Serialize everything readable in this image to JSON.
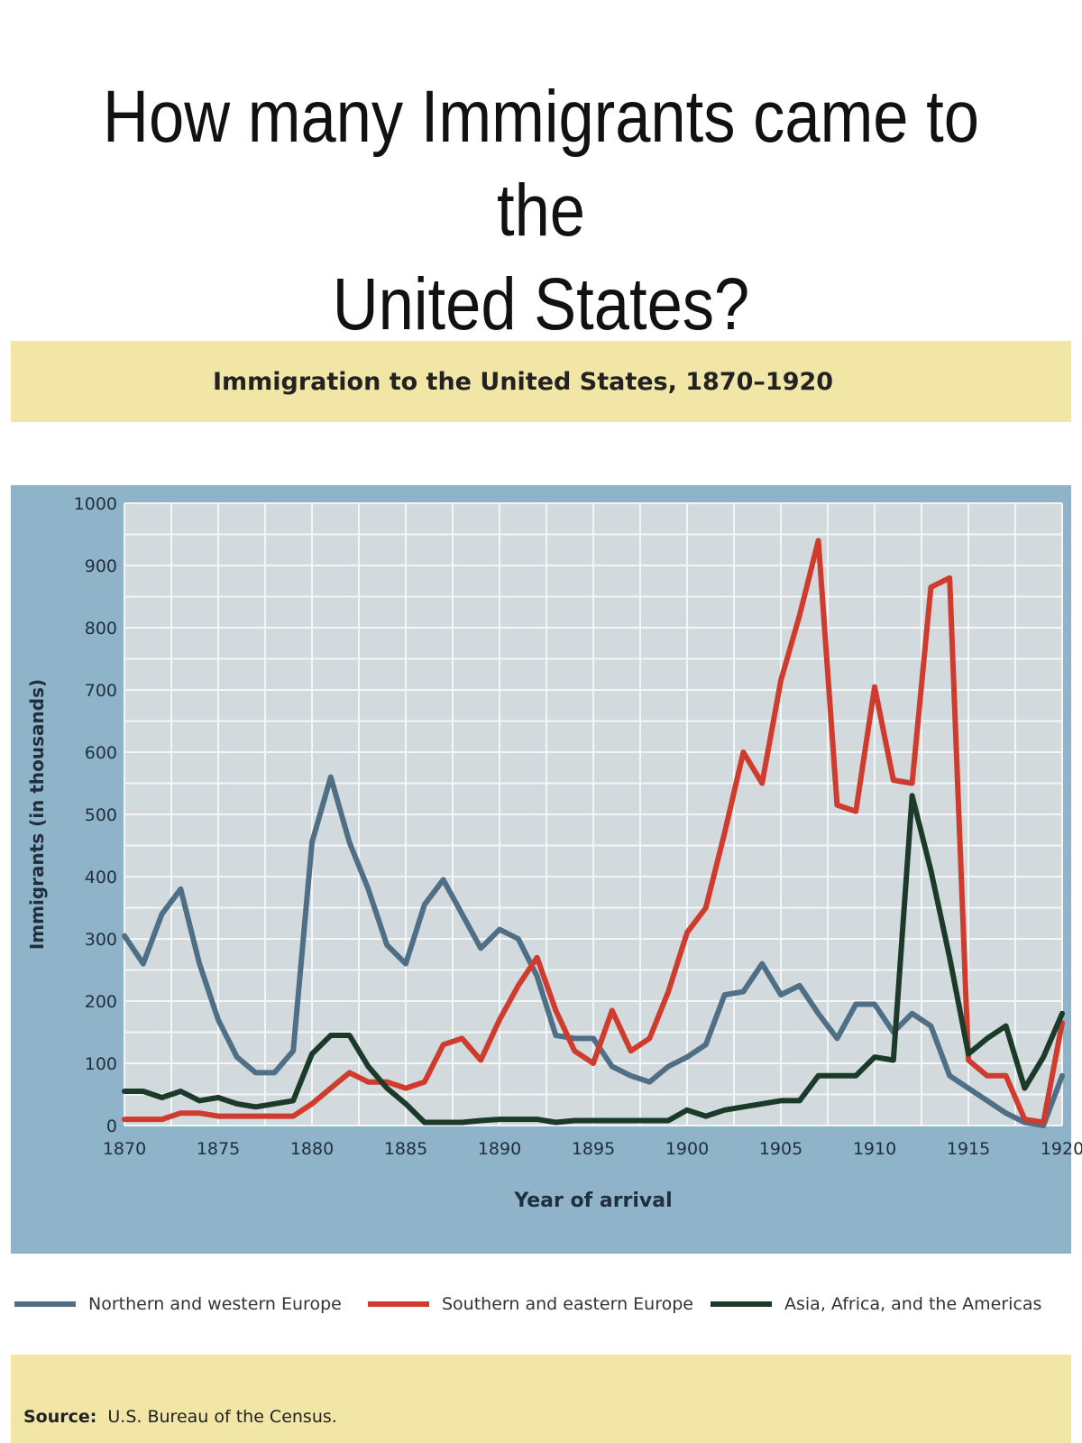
{
  "slide": {
    "title_line1": "How many Immigrants came to the",
    "title_line2": "United States?"
  },
  "colors": {
    "plot_background": "#d2dade",
    "frame": "#8fb3c9",
    "grid": "#f4f6f6",
    "band": "#f1e6a6"
  },
  "chart_data": {
    "type": "line",
    "title": "Immigration to the United States, 1870–1920",
    "xlabel": "Year of arrival",
    "ylabel": "Immigrants (in thousands)",
    "xlim": [
      1870,
      1920
    ],
    "ylim": [
      0,
      1000
    ],
    "x_ticks": [
      "1870",
      "1875",
      "1880",
      "1885",
      "1890",
      "1895",
      "1900",
      "1905",
      "1910",
      "1915",
      "1920"
    ],
    "y_ticks": [
      "0",
      "100",
      "200",
      "300",
      "400",
      "500",
      "600",
      "700",
      "800",
      "900",
      "1000"
    ],
    "grid": true,
    "legend_position": "bottom",
    "x": [
      1870,
      1871,
      1872,
      1873,
      1874,
      1875,
      1876,
      1877,
      1878,
      1879,
      1880,
      1881,
      1882,
      1883,
      1884,
      1885,
      1886,
      1887,
      1888,
      1889,
      1890,
      1891,
      1892,
      1893,
      1894,
      1895,
      1896,
      1897,
      1898,
      1899,
      1900,
      1901,
      1902,
      1903,
      1904,
      1905,
      1906,
      1907,
      1908,
      1909,
      1910,
      1911,
      1912,
      1913,
      1914,
      1915,
      1916,
      1917,
      1918,
      1919,
      1920
    ],
    "series": [
      {
        "name": "Northern and western Europe",
        "color": "#4f6f86",
        "values": [
          305,
          260,
          340,
          380,
          260,
          170,
          110,
          85,
          85,
          120,
          455,
          560,
          455,
          380,
          290,
          260,
          355,
          395,
          340,
          285,
          315,
          300,
          240,
          145,
          140,
          140,
          95,
          80,
          70,
          95,
          110,
          130,
          210,
          215,
          260,
          210,
          225,
          180,
          140,
          195,
          195,
          150,
          180,
          160,
          80,
          60,
          40,
          20,
          5,
          0,
          80
        ]
      },
      {
        "name": "Southern and eastern Europe",
        "color": "#cf3b2c",
        "values": [
          10,
          10,
          10,
          20,
          20,
          15,
          15,
          15,
          15,
          15,
          35,
          60,
          85,
          70,
          70,
          60,
          70,
          130,
          140,
          105,
          170,
          225,
          270,
          185,
          120,
          100,
          185,
          120,
          140,
          215,
          310,
          350,
          470,
          600,
          550,
          715,
          820,
          940,
          515,
          505,
          705,
          555,
          550,
          865,
          880,
          105,
          80,
          80,
          10,
          5,
          165
        ]
      },
      {
        "name": "Asia, Africa, and the Americas",
        "color": "#1c3a2a",
        "values": [
          55,
          55,
          45,
          55,
          40,
          45,
          35,
          30,
          35,
          40,
          115,
          145,
          145,
          95,
          60,
          35,
          5,
          5,
          5,
          8,
          10,
          10,
          10,
          5,
          8,
          8,
          8,
          8,
          8,
          8,
          25,
          15,
          25,
          30,
          35,
          40,
          40,
          80,
          80,
          80,
          110,
          105,
          530,
          410,
          270,
          115,
          140,
          160,
          60,
          110,
          180
        ]
      }
    ]
  },
  "source": {
    "label": "Source:",
    "text": "U.S. Bureau of the Census."
  }
}
